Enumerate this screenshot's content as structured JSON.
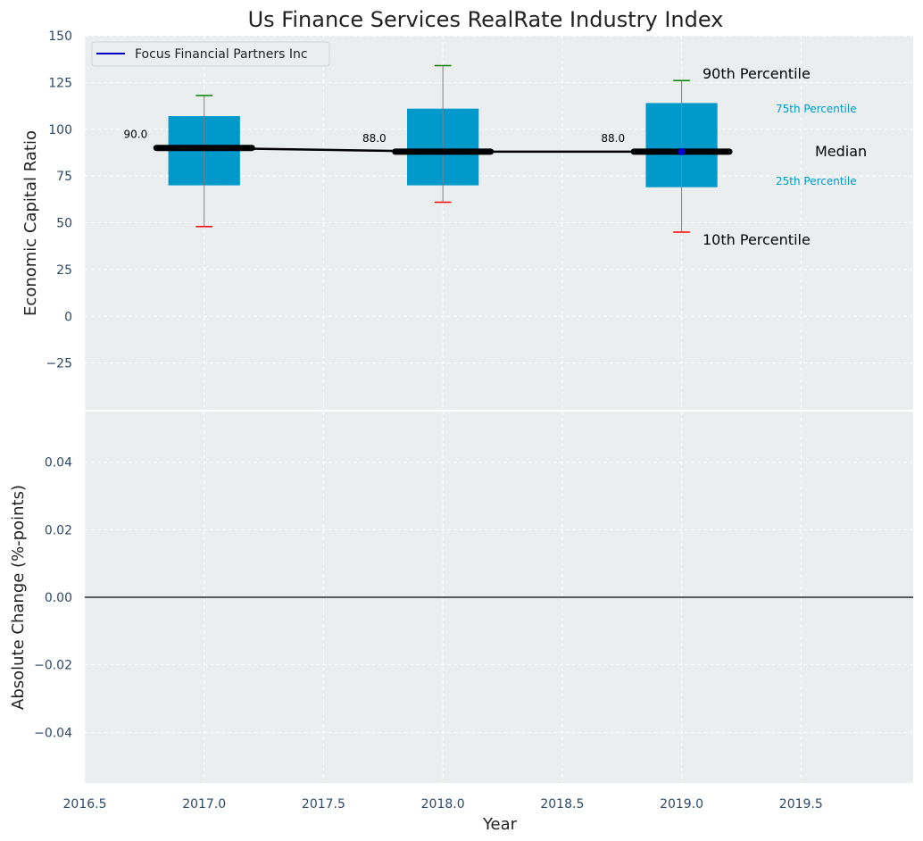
{
  "chart_data": {
    "type": "box",
    "title": "Us Finance Services RealRate Industry Index",
    "colors": {
      "box": "#0099cc",
      "median": "#000000",
      "p90_cap": "#008000",
      "p10_cap": "#ff0000",
      "company_line": "#0000cc",
      "panel_bg": "#eaeeef",
      "grid": "#ffffff",
      "whisker": "#808080"
    },
    "legend": {
      "placement": "top-left",
      "entries": [
        "Focus Financial Partners Inc"
      ]
    },
    "top_panel": {
      "ylabel": "Economic Capital Ratio",
      "ylim": [
        -50,
        150
      ],
      "yticks": [
        -25,
        0,
        25,
        50,
        75,
        100,
        125,
        150
      ],
      "ytick_labels": [
        "−25",
        "0",
        "25",
        "50",
        "75",
        "100",
        "125",
        "150"
      ],
      "grid": true,
      "series": [
        {
          "years": [
            2017,
            2018,
            2019
          ],
          "p10": [
            48,
            61,
            45
          ],
          "p25": [
            70,
            70,
            69
          ],
          "median": [
            90,
            88,
            88
          ],
          "p75": [
            107,
            111,
            114
          ],
          "p90": [
            118,
            134,
            126
          ]
        }
      ],
      "median_labels": [
        "90.0",
        "88.0",
        "88.0"
      ],
      "company_points": [
        {
          "x": 2019,
          "y": 88
        }
      ],
      "annotations": {
        "p90": "90th Percentile",
        "p75": "75th Percentile",
        "median": "Median",
        "p25": "25th Percentile",
        "p10": "10th Percentile"
      }
    },
    "bottom_panel": {
      "ylabel": "Absolute Change (%-points)",
      "ylim": [
        -0.055,
        0.055
      ],
      "yticks": [
        -0.04,
        -0.02,
        0.0,
        0.02,
        0.04
      ],
      "ytick_labels": [
        "−0.04",
        "−0.02",
        "0.00",
        "0.02",
        "0.04"
      ],
      "zero_line": true,
      "grid": true
    },
    "x_axis": {
      "xlabel": "Year",
      "xlim": [
        2016.5,
        2019.97
      ],
      "xticks": [
        2016.5,
        2017.0,
        2017.5,
        2018.0,
        2018.5,
        2019.0,
        2019.5
      ],
      "xtick_labels": [
        "2016.5",
        "2017.0",
        "2017.5",
        "2018.0",
        "2018.5",
        "2019.0",
        "2019.5"
      ]
    }
  }
}
